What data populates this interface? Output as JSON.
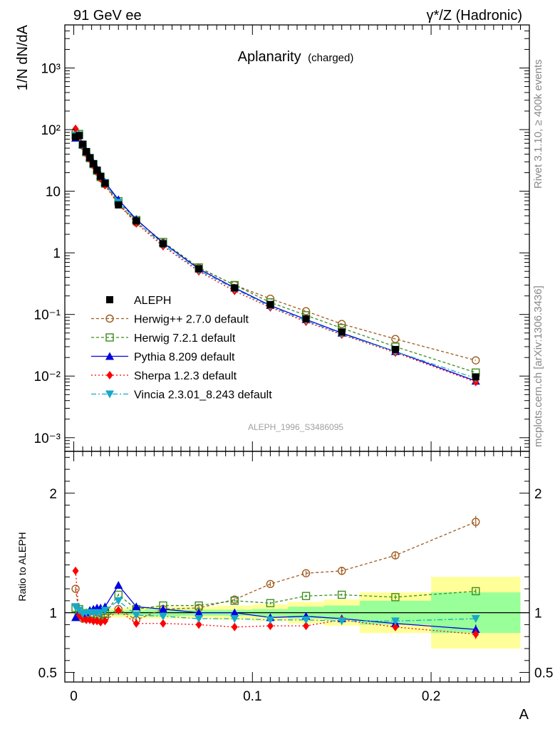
{
  "header": {
    "left": "91 GeV ee",
    "right": "γ*/Z (Hadronic)"
  },
  "side_text": {
    "top": "Rivet 3.1.10, ≥ 400k events",
    "bottom": "mcplots.cern.ch [arXiv:1306.3436]"
  },
  "colors": {
    "aleph": "#000000",
    "herwigpp": "#a05a1e",
    "herwig7": "#3c8c1e",
    "pythia": "#0000e0",
    "sherpa": "#ff0000",
    "vincia": "#17a8c8",
    "band_outer": "#ffff99",
    "band_inner": "#99ff99"
  },
  "chart_data": [
    {
      "type": "line",
      "title": "Aplanarity",
      "subtitle": "(charged)",
      "ylabel": "1/N dN/dA",
      "xlabel": "A",
      "yscale": "log",
      "ylim": [
        0.0006,
        5000
      ],
      "xlim": [
        -0.005,
        0.255
      ],
      "watermark": "ALEPH_1996_S3486095",
      "y_ticks": [
        {
          "v": 0.001,
          "t": "10⁻³"
        },
        {
          "v": 0.01,
          "t": "10⁻²"
        },
        {
          "v": 0.1,
          "t": "10⁻¹"
        },
        {
          "v": 1,
          "t": "1"
        },
        {
          "v": 10,
          "t": "10"
        },
        {
          "v": 100,
          "t": "10²"
        },
        {
          "v": 1000,
          "t": "10³"
        }
      ],
      "x": [
        0.001,
        0.003,
        0.005,
        0.007,
        0.009,
        0.011,
        0.013,
        0.015,
        0.0175,
        0.025,
        0.035,
        0.05,
        0.07,
        0.09,
        0.11,
        0.13,
        0.15,
        0.18,
        0.225
      ],
      "series": [
        {
          "name": "ALEPH",
          "key": "aleph",
          "style": "data",
          "values": [
            76,
            80,
            58,
            44,
            35,
            28,
            22,
            17.5,
            13.5,
            6.0,
            3.3,
            1.4,
            0.55,
            0.27,
            0.145,
            0.085,
            0.052,
            0.027,
            0.0097
          ]
        },
        {
          "name": "Herwig++ 2.7.0 default",
          "key": "herwigpp",
          "style": "openCircle",
          "dash": "4,3",
          "values": [
            91,
            79,
            55,
            42,
            34,
            27,
            21,
            16.5,
            13.0,
            6.2,
            3.1,
            1.45,
            0.57,
            0.3,
            0.18,
            0.113,
            0.07,
            0.04,
            0.018
          ]
        },
        {
          "name": "Herwig 7.2.1 default",
          "key": "herwig7",
          "style": "openSquare",
          "dash": "4,3",
          "values": [
            80,
            85,
            57,
            43,
            34.5,
            27.5,
            21.5,
            17,
            13.3,
            6.9,
            3.4,
            1.5,
            0.58,
            0.3,
            0.157,
            0.097,
            0.06,
            0.03,
            0.0114
          ]
        },
        {
          "name": "Pythia 8.209 default",
          "key": "pythia",
          "style": "triUp",
          "dash": "",
          "values": [
            73,
            80,
            57,
            44,
            36,
            29,
            23,
            18,
            14.0,
            7.3,
            3.5,
            1.45,
            0.55,
            0.27,
            0.14,
            0.083,
            0.05,
            0.025,
            0.0083
          ]
        },
        {
          "name": "Sherpa 1.2.3 default",
          "key": "sherpa",
          "style": "diamond",
          "dash": "2,3",
          "values": [
            103,
            78,
            55,
            41,
            33,
            26,
            20.5,
            16,
            12.5,
            6.1,
            3.0,
            1.28,
            0.5,
            0.24,
            0.13,
            0.076,
            0.047,
            0.024,
            0.008
          ]
        },
        {
          "name": "Vincia 2.3.01_8.243 default",
          "key": "vincia",
          "style": "triDown",
          "dash": "7,3,2,3",
          "values": [
            80,
            82,
            57,
            44,
            35,
            28,
            22,
            17.5,
            13.8,
            6.6,
            3.2,
            1.35,
            0.52,
            0.26,
            0.135,
            0.079,
            0.048,
            0.025,
            0.0092
          ]
        }
      ]
    },
    {
      "type": "line",
      "ylabel": "Ratio to ALEPH",
      "xlabel": "A",
      "ylim": [
        0.42,
        2.35
      ],
      "xlim": [
        -0.005,
        0.255
      ],
      "y_ticks": [
        {
          "v": 0.5,
          "t": "0.5"
        },
        {
          "v": 1,
          "t": "1"
        },
        {
          "v": 2,
          "t": "2"
        }
      ],
      "x_ticks": [
        {
          "v": 0,
          "t": "0"
        },
        {
          "v": 0.1,
          "t": "0.1"
        },
        {
          "v": 0.2,
          "t": "0.2"
        }
      ],
      "bins": [
        {
          "x0": 0.0,
          "x1": 0.002,
          "inner": 0.02,
          "outer": 0.04
        },
        {
          "x0": 0.002,
          "x1": 0.004,
          "inner": 0.02,
          "outer": 0.04
        },
        {
          "x0": 0.004,
          "x1": 0.006,
          "inner": 0.02,
          "outer": 0.04
        },
        {
          "x0": 0.006,
          "x1": 0.008,
          "inner": 0.02,
          "outer": 0.04
        },
        {
          "x0": 0.008,
          "x1": 0.01,
          "inner": 0.02,
          "outer": 0.04
        },
        {
          "x0": 0.01,
          "x1": 0.012,
          "inner": 0.02,
          "outer": 0.04
        },
        {
          "x0": 0.012,
          "x1": 0.014,
          "inner": 0.02,
          "outer": 0.04
        },
        {
          "x0": 0.014,
          "x1": 0.016,
          "inner": 0.02,
          "outer": 0.04
        },
        {
          "x0": 0.016,
          "x1": 0.02,
          "inner": 0.02,
          "outer": 0.04
        },
        {
          "x0": 0.02,
          "x1": 0.03,
          "inner": 0.02,
          "outer": 0.04
        },
        {
          "x0": 0.03,
          "x1": 0.04,
          "inner": 0.02,
          "outer": 0.05
        },
        {
          "x0": 0.04,
          "x1": 0.06,
          "inner": 0.03,
          "outer": 0.05
        },
        {
          "x0": 0.06,
          "x1": 0.08,
          "inner": 0.025,
          "outer": 0.05
        },
        {
          "x0": 0.08,
          "x1": 0.1,
          "inner": 0.025,
          "outer": 0.06
        },
        {
          "x0": 0.1,
          "x1": 0.12,
          "inner": 0.03,
          "outer": 0.07
        },
        {
          "x0": 0.12,
          "x1": 0.14,
          "inner": 0.05,
          "outer": 0.09
        },
        {
          "x0": 0.14,
          "x1": 0.16,
          "inner": 0.06,
          "outer": 0.11
        },
        {
          "x0": 0.16,
          "x1": 0.2,
          "inner": 0.1,
          "outer": 0.17
        },
        {
          "x0": 0.2,
          "x1": 0.25,
          "inner": 0.17,
          "outer": 0.3
        }
      ],
      "x": [
        0.001,
        0.003,
        0.005,
        0.007,
        0.009,
        0.011,
        0.013,
        0.015,
        0.0175,
        0.025,
        0.035,
        0.05,
        0.07,
        0.09,
        0.11,
        0.13,
        0.15,
        0.18,
        0.225
      ],
      "series": [
        {
          "name": "Herwig++ 2.7.0 default",
          "key": "herwigpp",
          "style": "openCircle",
          "dash": "4,3",
          "values": [
            1.2,
            0.99,
            0.95,
            0.96,
            0.97,
            0.96,
            0.95,
            0.94,
            0.96,
            1.03,
            0.94,
            1.03,
            1.04,
            1.11,
            1.24,
            1.33,
            1.35,
            1.48,
            1.76
          ],
          "errors": [
            0.02,
            0.01,
            0.01,
            0.01,
            0.01,
            0.01,
            0.01,
            0.01,
            0.01,
            0.01,
            0.01,
            0.01,
            0.01,
            0.01,
            0.02,
            0.02,
            0.03,
            0.03,
            0.05
          ]
        },
        {
          "name": "Herwig 7.2.1 default",
          "key": "herwig7",
          "style": "openSquare",
          "dash": "4,3",
          "values": [
            1.04,
            1.03,
            0.98,
            0.98,
            0.99,
            0.99,
            0.98,
            0.98,
            0.99,
            1.15,
            1.03,
            1.06,
            1.06,
            1.1,
            1.08,
            1.14,
            1.15,
            1.13,
            1.18
          ],
          "errors": [
            0.01,
            0.01,
            0.01,
            0.01,
            0.01,
            0.01,
            0.01,
            0.01,
            0.01,
            0.01,
            0.01,
            0.01,
            0.01,
            0.01,
            0.01,
            0.01,
            0.01,
            0.02,
            0.02
          ]
        },
        {
          "name": "Pythia 8.209 default",
          "key": "pythia",
          "style": "triUp",
          "dash": "",
          "values": [
            0.96,
            1.0,
            0.99,
            1.0,
            1.02,
            1.03,
            1.04,
            1.04,
            1.05,
            1.23,
            1.05,
            1.03,
            1.0,
            1.0,
            0.96,
            0.97,
            0.95,
            0.91,
            0.86
          ],
          "errors": [
            0.01,
            0.01,
            0.01,
            0.01,
            0.01,
            0.01,
            0.01,
            0.01,
            0.01,
            0.01,
            0.01,
            0.01,
            0.01,
            0.01,
            0.01,
            0.02,
            0.02,
            0.03,
            0.04
          ]
        },
        {
          "name": "Sherpa 1.2.3 default",
          "key": "sherpa",
          "style": "diamond",
          "dash": "2,3",
          "values": [
            1.35,
            0.98,
            0.95,
            0.94,
            0.94,
            0.93,
            0.93,
            0.92,
            0.93,
            1.02,
            0.91,
            0.91,
            0.9,
            0.88,
            0.89,
            0.89,
            0.94,
            0.88,
            0.82
          ],
          "errors": [
            0.02,
            0.01,
            0.01,
            0.01,
            0.01,
            0.01,
            0.01,
            0.01,
            0.01,
            0.01,
            0.01,
            0.01,
            0.01,
            0.01,
            0.02,
            0.02,
            0.02,
            0.03,
            0.04
          ]
        },
        {
          "name": "Vincia 2.3.01_8.243 default",
          "key": "vincia",
          "style": "triDown",
          "dash": "7,3,2,3",
          "values": [
            1.05,
            1.02,
            0.99,
            1.0,
            1.0,
            1.0,
            1.0,
            1.0,
            1.02,
            1.1,
            0.98,
            0.97,
            0.95,
            0.95,
            0.94,
            0.94,
            0.93,
            0.93,
            0.95
          ],
          "errors": [
            0.01,
            0.01,
            0.01,
            0.01,
            0.01,
            0.01,
            0.01,
            0.01,
            0.01,
            0.01,
            0.01,
            0.01,
            0.01,
            0.01,
            0.01,
            0.01,
            0.02,
            0.02,
            0.03
          ]
        }
      ]
    }
  ]
}
